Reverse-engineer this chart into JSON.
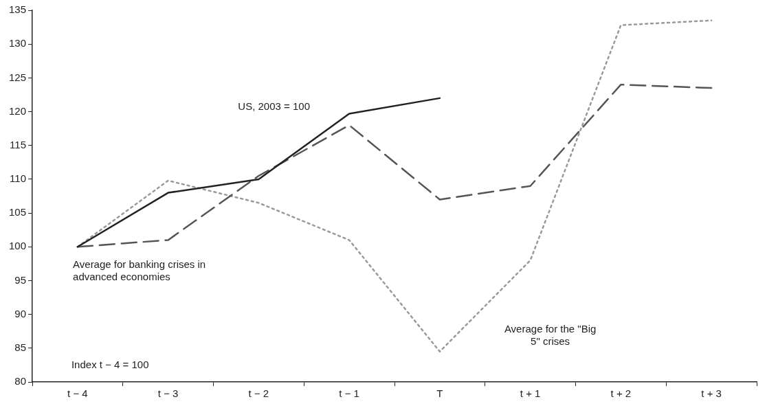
{
  "chart_data": {
    "type": "line",
    "categories": [
      "t − 4",
      "t − 3",
      "t − 2",
      "t − 1",
      "T",
      "t + 1",
      "t + 2",
      "t + 3"
    ],
    "series": [
      {
        "name": "US, 2003 = 100",
        "color": "#222222",
        "line_style": "solid",
        "values": [
          100,
          108,
          110,
          119.7,
          122,
          null,
          null,
          null
        ]
      },
      {
        "name": "Average for banking crises in advanced economies",
        "color": "#555555",
        "line_style": "dashed",
        "values": [
          100,
          101,
          110.5,
          118,
          107,
          109,
          124,
          123.5
        ]
      },
      {
        "name": "Average for the \"Big 5\" crises",
        "color": "#999999",
        "line_style": "dotted",
        "values": [
          100,
          109.8,
          106.5,
          101,
          84.5,
          98,
          132.8,
          133.5
        ]
      }
    ],
    "ylim": [
      80,
      135
    ],
    "yticks": [
      80,
      85,
      90,
      95,
      100,
      105,
      110,
      115,
      120,
      125,
      130,
      135
    ],
    "grid": false,
    "legend": false,
    "marker": "none",
    "annotations": [
      "Index t − 4 = 100"
    ]
  }
}
